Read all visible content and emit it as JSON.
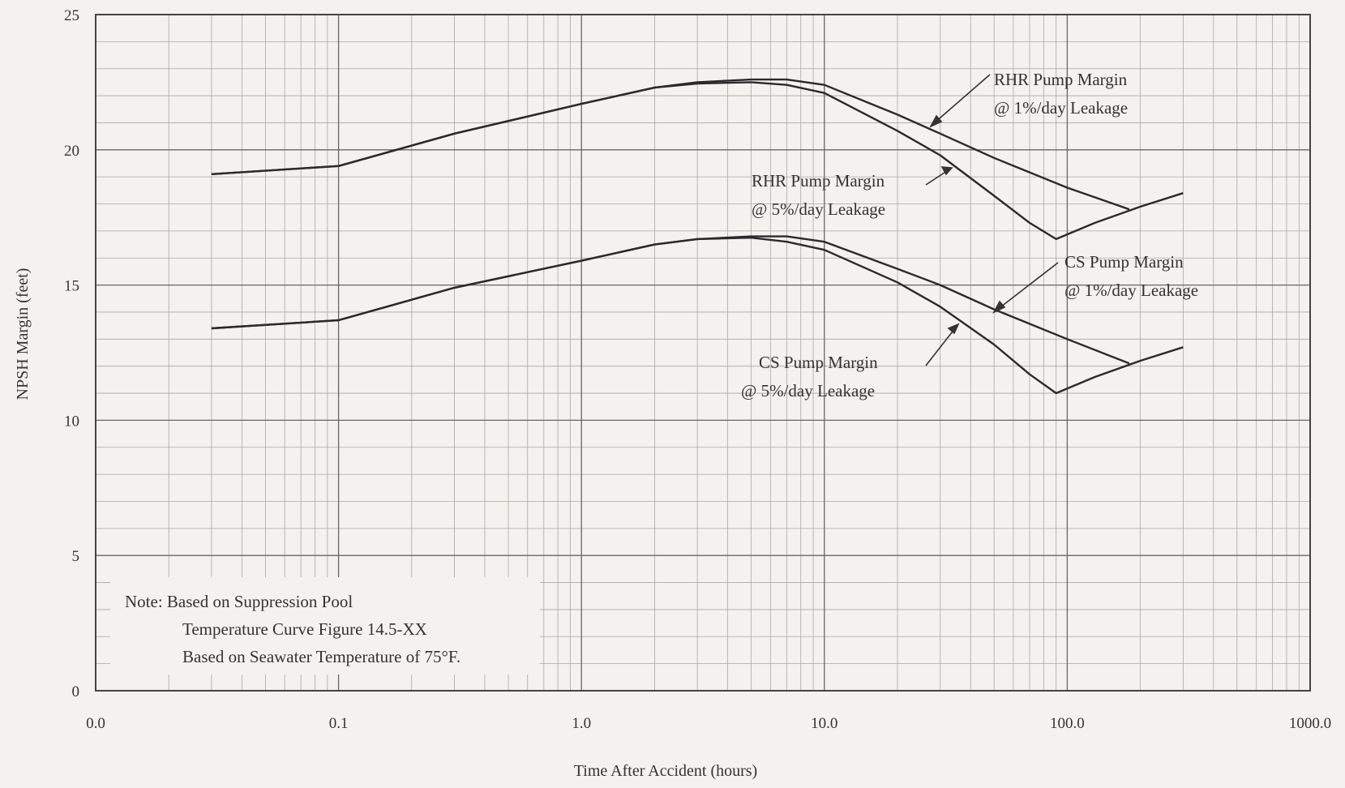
{
  "chart_data": {
    "type": "line",
    "x_scale": "log",
    "xlim": [
      0.01,
      1000
    ],
    "ylim": [
      0,
      25
    ],
    "grid": true,
    "xlabel": "Time After Accident (hours)",
    "ylabel": "NPSH Margin (feet)",
    "x_tick_labels": [
      "0.0",
      "0.1",
      "1.0",
      "10.0",
      "100.0",
      "1000.0"
    ],
    "y_tick_labels": [
      "0",
      "5",
      "10",
      "15",
      "20",
      "25"
    ],
    "series": [
      {
        "name_lines": [
          "RHR Pump Margin",
          "@ 1%/day Leakage"
        ],
        "x": [
          0.03,
          0.1,
          0.3,
          1,
          2,
          3,
          5,
          7,
          10,
          20,
          30,
          50,
          100,
          180
        ],
        "y": [
          19.1,
          19.4,
          20.6,
          21.7,
          22.3,
          22.5,
          22.6,
          22.6,
          22.4,
          21.3,
          20.6,
          19.7,
          18.6,
          17.8
        ]
      },
      {
        "name_lines": [
          "RHR Pump Margin",
          "@ 5%/day Leakage"
        ],
        "x": [
          0.03,
          0.1,
          0.3,
          1,
          2,
          3,
          5,
          7,
          10,
          20,
          30,
          50,
          70,
          90,
          130,
          200,
          300
        ],
        "y": [
          19.1,
          19.4,
          20.6,
          21.7,
          22.3,
          22.45,
          22.5,
          22.4,
          22.1,
          20.7,
          19.8,
          18.3,
          17.3,
          16.7,
          17.3,
          17.9,
          18.4
        ]
      },
      {
        "name_lines": [
          "CS Pump Margin",
          "@ 1%/day Leakage"
        ],
        "x": [
          0.03,
          0.1,
          0.3,
          1,
          2,
          3,
          5,
          7,
          10,
          20,
          30,
          50,
          100,
          180
        ],
        "y": [
          13.4,
          13.7,
          14.9,
          15.9,
          16.5,
          16.7,
          16.8,
          16.8,
          16.6,
          15.6,
          15.0,
          14.1,
          13.0,
          12.1
        ]
      },
      {
        "name_lines": [
          "CS Pump Margin",
          "@ 5%/day Leakage"
        ],
        "x": [
          0.03,
          0.1,
          0.3,
          1,
          2,
          3,
          5,
          7,
          10,
          20,
          30,
          50,
          70,
          90,
          130,
          200,
          300
        ],
        "y": [
          13.4,
          13.7,
          14.9,
          15.9,
          16.5,
          16.7,
          16.75,
          16.6,
          16.3,
          15.1,
          14.2,
          12.8,
          11.7,
          11.0,
          11.6,
          12.2,
          12.7
        ]
      }
    ],
    "note_lines": [
      "Note: Based on Suppression Pool",
      "Temperature Curve Figure 14.5-XX",
      "Based on Seawater Temperature of 75°F."
    ]
  }
}
